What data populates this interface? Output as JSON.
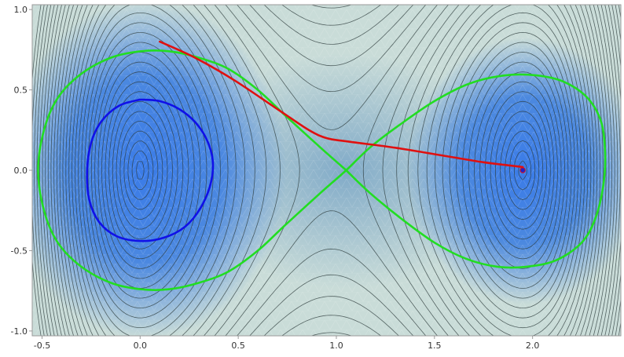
{
  "chart_data": {
    "type": "contour",
    "title": "",
    "xlabel": "",
    "ylabel": "",
    "xlim": [
      -0.55,
      2.45
    ],
    "ylim": [
      -1.03,
      1.03
    ],
    "grid": false,
    "legend": "none",
    "x_ticks": [
      {
        "value": -0.5,
        "label": "-0.5"
      },
      {
        "value": 0.0,
        "label": "0.0"
      },
      {
        "value": 0.5,
        "label": "0.5"
      },
      {
        "value": 1.0,
        "label": "1.0"
      },
      {
        "value": 1.5,
        "label": "1.5"
      },
      {
        "value": 2.0,
        "label": "2.0"
      }
    ],
    "y_ticks": [
      {
        "value": 1.0,
        "label": "1.0"
      },
      {
        "value": 0.5,
        "label": "0.5"
      },
      {
        "value": 0.0,
        "label": "0.0"
      },
      {
        "value": -0.5,
        "label": "-0.5"
      },
      {
        "value": -1.0,
        "label": "-1.0"
      }
    ],
    "background": {
      "field": "double-well potential with minima near (0, 0) and (1.95, 0) and a saddle near (1.05, 0)",
      "fill_low": "#3d7ee6",
      "fill_high": "#cfe0dc",
      "contour_color": "#2b3a3a"
    },
    "series": [
      {
        "kind": "curve",
        "color": "#1010e8",
        "points": [
          [
            0.0,
            0.44
          ],
          [
            0.1,
            0.43
          ],
          [
            0.2,
            0.38
          ],
          [
            0.28,
            0.3
          ],
          [
            0.34,
            0.19
          ],
          [
            0.37,
            0.06
          ],
          [
            0.36,
            -0.08
          ],
          [
            0.31,
            -0.23
          ],
          [
            0.23,
            -0.35
          ],
          [
            0.12,
            -0.42
          ],
          [
            0.0,
            -0.44
          ],
          [
            -0.12,
            -0.41
          ],
          [
            -0.21,
            -0.32
          ],
          [
            -0.26,
            -0.18
          ],
          [
            -0.27,
            0.0
          ],
          [
            -0.25,
            0.17
          ],
          [
            -0.2,
            0.3
          ],
          [
            -0.11,
            0.4
          ],
          [
            0.0,
            0.44
          ]
        ]
      },
      {
        "kind": "curve",
        "color": "#22dd22",
        "points": [
          [
            1.05,
            0.0
          ],
          [
            0.92,
            0.14
          ],
          [
            0.74,
            0.34
          ],
          [
            0.6,
            0.5
          ],
          [
            0.45,
            0.63
          ],
          [
            0.3,
            0.7
          ],
          [
            0.15,
            0.74
          ],
          [
            0.0,
            0.74
          ],
          [
            -0.15,
            0.7
          ],
          [
            -0.3,
            0.6
          ],
          [
            -0.42,
            0.45
          ],
          [
            -0.49,
            0.25
          ],
          [
            -0.52,
            0.0
          ],
          [
            -0.49,
            -0.25
          ],
          [
            -0.42,
            -0.45
          ],
          [
            -0.3,
            -0.6
          ],
          [
            -0.15,
            -0.7
          ],
          [
            0.0,
            -0.74
          ],
          [
            0.15,
            -0.74
          ],
          [
            0.3,
            -0.7
          ],
          [
            0.45,
            -0.63
          ],
          [
            0.6,
            -0.5
          ],
          [
            0.74,
            -0.34
          ],
          [
            0.92,
            -0.14
          ],
          [
            1.05,
            0.0
          ],
          [
            1.17,
            0.14
          ],
          [
            1.32,
            0.28
          ],
          [
            1.5,
            0.43
          ],
          [
            1.68,
            0.54
          ],
          [
            1.86,
            0.59
          ],
          [
            2.02,
            0.59
          ],
          [
            2.16,
            0.55
          ],
          [
            2.28,
            0.45
          ],
          [
            2.35,
            0.3
          ],
          [
            2.37,
            0.1
          ],
          [
            2.36,
            -0.1
          ],
          [
            2.32,
            -0.3
          ],
          [
            2.25,
            -0.45
          ],
          [
            2.12,
            -0.56
          ],
          [
            1.97,
            -0.6
          ],
          [
            1.82,
            -0.6
          ],
          [
            1.66,
            -0.55
          ],
          [
            1.5,
            -0.45
          ],
          [
            1.33,
            -0.3
          ],
          [
            1.17,
            -0.14
          ],
          [
            1.05,
            0.0
          ]
        ]
      },
      {
        "kind": "curve",
        "color": "#e01010",
        "points": [
          [
            0.1,
            0.8
          ],
          [
            0.28,
            0.7
          ],
          [
            0.48,
            0.56
          ],
          [
            0.7,
            0.38
          ],
          [
            0.86,
            0.25
          ],
          [
            0.95,
            0.2
          ],
          [
            1.05,
            0.18
          ],
          [
            1.3,
            0.14
          ],
          [
            1.55,
            0.09
          ],
          [
            1.75,
            0.05
          ],
          [
            1.95,
            0.02
          ]
        ]
      },
      {
        "kind": "point",
        "color": "#2222cc",
        "x": 1.95,
        "y": 0.0
      }
    ]
  }
}
